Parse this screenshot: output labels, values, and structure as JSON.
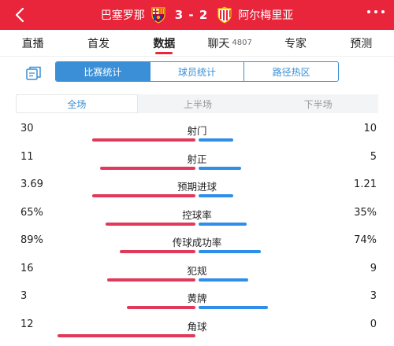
{
  "header": {
    "home_team": "巴塞罗那",
    "score": "3 - 2",
    "away_team": "阿尔梅里亚",
    "accent": "#e8253a"
  },
  "top_tabs": [
    {
      "label": "直播"
    },
    {
      "label": "首发"
    },
    {
      "label": "数据"
    },
    {
      "label": "聊天",
      "count": "4807"
    },
    {
      "label": "专家"
    },
    {
      "label": "预测"
    }
  ],
  "sub_tabs": [
    {
      "label": "比赛统计"
    },
    {
      "label": "球员统计"
    },
    {
      "label": "路径热区"
    }
  ],
  "period_tabs": [
    {
      "label": "全场"
    },
    {
      "label": "上半场"
    },
    {
      "label": "下半场"
    }
  ],
  "colors": {
    "home_bar": "#e0395a",
    "away_bar": "#2f8ee8",
    "tab_blue": "#3a8fd6"
  },
  "stats": [
    {
      "label": "射门",
      "home": "30",
      "away": "10",
      "home_share": 0.75,
      "away_share": 0.25
    },
    {
      "label": "射正",
      "home": "11",
      "away": "5",
      "home_share": 0.69,
      "away_share": 0.31
    },
    {
      "label": "预期进球",
      "home": "3.69",
      "away": "1.21",
      "home_share": 0.75,
      "away_share": 0.25
    },
    {
      "label": "控球率",
      "home": "65%",
      "away": "35%",
      "home_share": 0.65,
      "away_share": 0.35
    },
    {
      "label": "传球成功率",
      "home": "89%",
      "away": "74%",
      "home_share": 0.55,
      "away_share": 0.45
    },
    {
      "label": "犯规",
      "home": "16",
      "away": "9",
      "home_share": 0.64,
      "away_share": 0.36
    },
    {
      "label": "黄牌",
      "home": "3",
      "away": "3",
      "home_share": 0.5,
      "away_share": 0.5
    },
    {
      "label": "角球",
      "home": "12",
      "away": "0",
      "home_share": 1.0,
      "away_share": 0.0
    }
  ]
}
